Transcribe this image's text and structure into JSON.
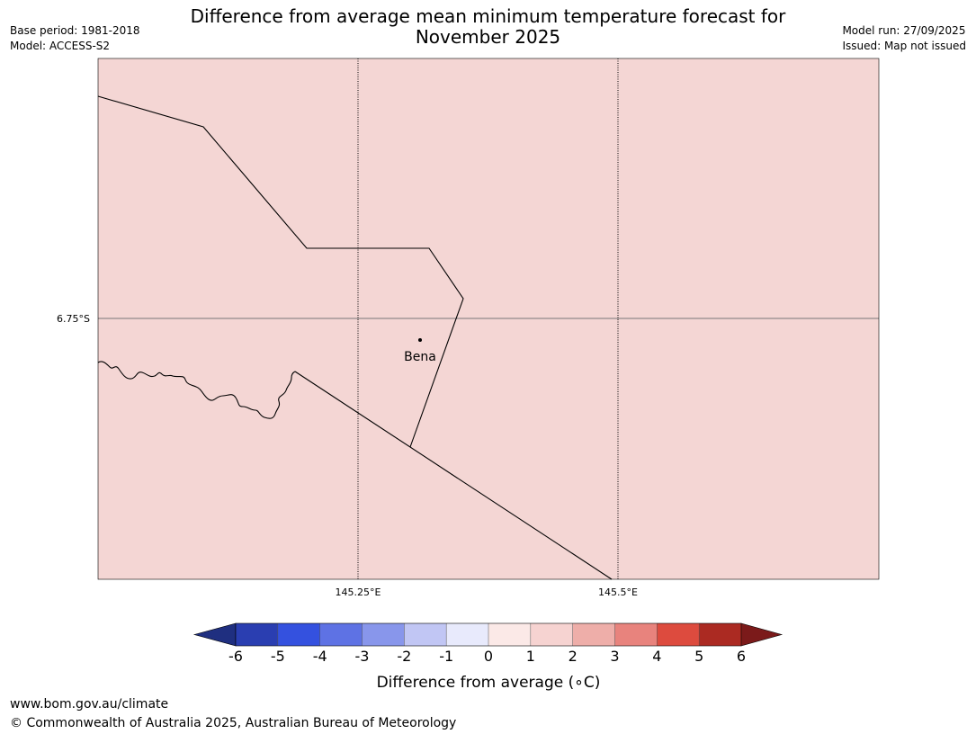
{
  "header": {
    "title_line1": "Difference from average mean minimum temperature forecast for",
    "title_line2": "November 2025",
    "base_period": "Base period: 1981-2018",
    "model": "Model: ACCESS-S2",
    "model_run": "Model run: 27/09/2025",
    "issued": "Issued: Map not issued"
  },
  "map": {
    "fill_color": "#f4d6d4",
    "lat_label": "6.75°S",
    "lon_labels": [
      "145.25°E",
      "145.5°E"
    ],
    "place": {
      "name": "Bena"
    }
  },
  "colorbar": {
    "title": "Difference from average (∘C)",
    "ticks": [
      "-6",
      "-5",
      "-4",
      "-3",
      "-2",
      "-1",
      "0",
      "1",
      "2",
      "3",
      "4",
      "5",
      "6"
    ],
    "low_extend_color": "#1f2f80",
    "high_extend_color": "#7b1a1a",
    "colors": [
      "#2a3eb1",
      "#3451df",
      "#5e72e4",
      "#8896eb",
      "#c1c6f4",
      "#e8eafc",
      "#fbe9e7",
      "#f6d3d1",
      "#eeaea9",
      "#e8837d",
      "#dd4b3e",
      "#ab2a22"
    ]
  },
  "footer": {
    "url": "www.bom.gov.au/climate",
    "copyright": "© Commonwealth of Australia 2025, Australian Bureau of Meteorology"
  }
}
